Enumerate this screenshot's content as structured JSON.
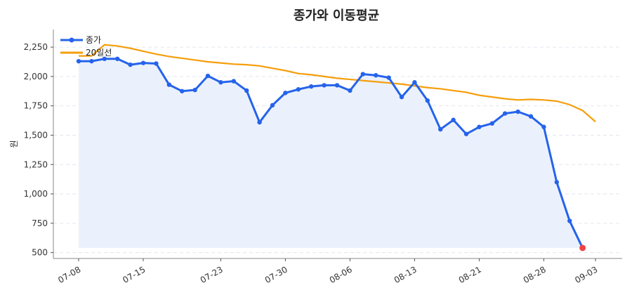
{
  "chart_data": {
    "type": "line",
    "title": "종가와 이동평균",
    "xlabel": "",
    "ylabel": "원",
    "ylim": [
      450,
      2400
    ],
    "yticks": [
      500,
      750,
      1000,
      1250,
      1500,
      1750,
      2000,
      2250
    ],
    "ytick_labels": [
      "500",
      "750",
      "1,000",
      "1,250",
      "1,500",
      "1,750",
      "2,000",
      "2,250"
    ],
    "grid": true,
    "legend_position": "top-left",
    "x": [
      "07-08",
      "07-09",
      "07-10",
      "07-11",
      "07-12",
      "07-15",
      "07-16",
      "07-17",
      "07-18",
      "07-19",
      "07-22",
      "07-23",
      "07-24",
      "07-25",
      "07-26",
      "07-29",
      "07-30",
      "07-31",
      "08-01",
      "08-02",
      "08-05",
      "08-06",
      "08-07",
      "08-08",
      "08-09",
      "08-12",
      "08-13",
      "08-14",
      "08-16",
      "08-19",
      "08-20",
      "08-21",
      "08-22",
      "08-23",
      "08-26",
      "08-27",
      "08-28",
      "08-29",
      "08-30",
      "09-02",
      "09-03"
    ],
    "xticks": [
      "07-08",
      "07-15",
      "07-23",
      "07-30",
      "08-06",
      "08-13",
      "08-21",
      "08-28",
      "09-03"
    ],
    "series": [
      {
        "name": "종가",
        "color": "#2563eb",
        "style": "line-markers",
        "fill": "#e8eefc",
        "values": [
          2130,
          2130,
          2150,
          2150,
          2100,
          2115,
          2110,
          1930,
          1875,
          1885,
          2005,
          1950,
          1960,
          1880,
          1610,
          1755,
          1860,
          1890,
          1915,
          1925,
          1925,
          1880,
          2020,
          2010,
          1990,
          1825,
          1950,
          1795,
          1550,
          1630,
          1510,
          1570,
          1600,
          1685,
          1700,
          1660,
          1570,
          1100,
          770,
          540,
          null
        ],
        "last_point_color": "#ef4444"
      },
      {
        "name": "20일선",
        "color": "#f59e0b",
        "style": "line",
        "values": [
          2175,
          2175,
          2270,
          2260,
          2240,
          2215,
          2190,
          2170,
          2155,
          2140,
          2125,
          2115,
          2105,
          2100,
          2090,
          2070,
          2050,
          2025,
          2015,
          2000,
          1985,
          1975,
          1965,
          1955,
          1945,
          1935,
          1920,
          1905,
          1895,
          1880,
          1865,
          1840,
          1825,
          1810,
          1800,
          1805,
          1800,
          1790,
          1760,
          1710,
          1615
        ]
      }
    ]
  }
}
